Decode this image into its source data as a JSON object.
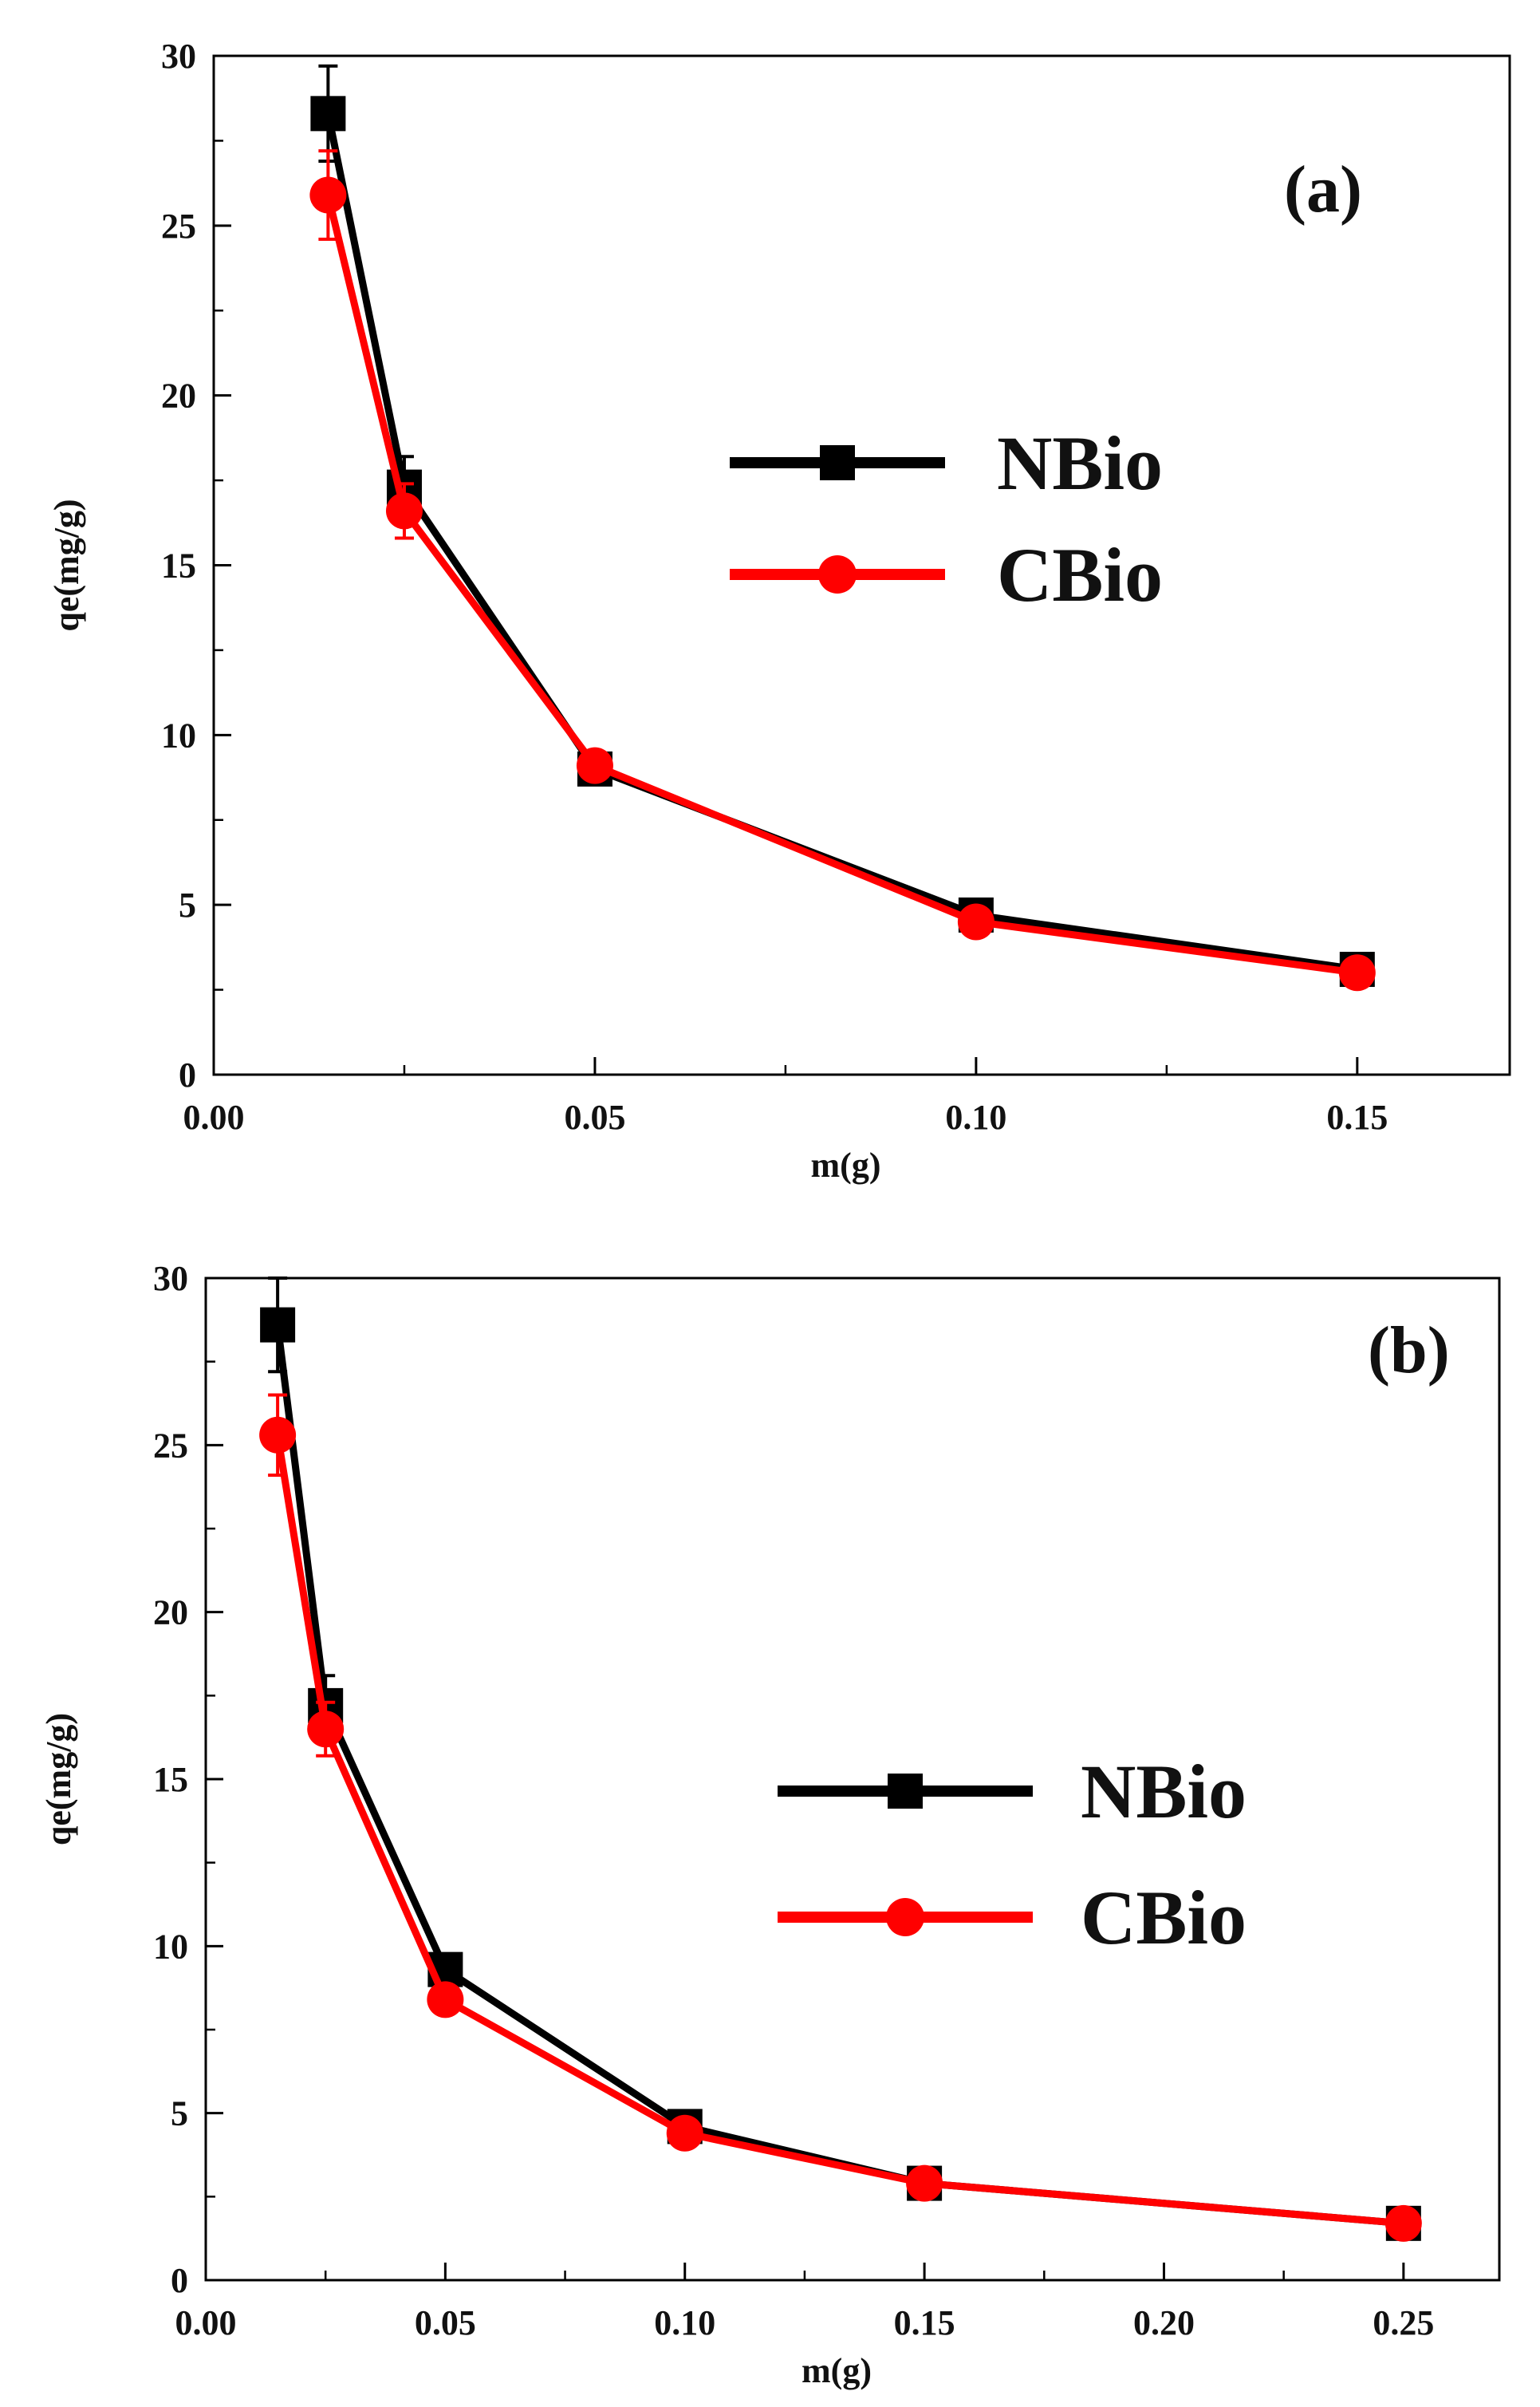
{
  "chart_data": [
    {
      "type": "line",
      "panel_label": "(a)",
      "xlabel": "m(g)",
      "ylabel": "qe(mg/g)",
      "xlim": [
        0,
        0.17
      ],
      "ylim": [
        0,
        30
      ],
      "xticks": [
        0.0,
        0.05,
        0.1,
        0.15
      ],
      "xtick_labels": [
        "0.00",
        "0.05",
        "0.10",
        "0.15"
      ],
      "yticks": [
        0,
        5,
        10,
        15,
        20,
        25,
        30
      ],
      "ytick_labels": [
        "0",
        "5",
        "10",
        "15",
        "20",
        "25",
        "30"
      ],
      "grid": false,
      "legend_position": "right-center",
      "series": [
        {
          "name": "NBio",
          "color": "#000000",
          "marker": "square",
          "x": [
            0.015,
            0.025,
            0.05,
            0.1,
            0.15
          ],
          "y": [
            28.3,
            17.3,
            9.0,
            4.7,
            3.1
          ],
          "err": [
            1.4,
            0.9,
            0.4,
            0.3,
            0.3
          ]
        },
        {
          "name": "CBio",
          "color": "#ff0000",
          "marker": "circle",
          "x": [
            0.015,
            0.025,
            0.05,
            0.1,
            0.15
          ],
          "y": [
            25.9,
            16.6,
            9.1,
            4.5,
            3.0
          ],
          "err": [
            1.3,
            0.8,
            0.4,
            0.3,
            0.3
          ]
        }
      ]
    },
    {
      "type": "line",
      "panel_label": "(b)",
      "xlabel": "m(g)",
      "ylabel": "qe(mg/g)",
      "xlim": [
        0,
        0.27
      ],
      "ylim": [
        0,
        30
      ],
      "xticks": [
        0.0,
        0.05,
        0.1,
        0.15,
        0.2,
        0.25
      ],
      "xtick_labels": [
        "0.00",
        "0.05",
        "0.10",
        "0.15",
        "0.20",
        "0.25"
      ],
      "yticks": [
        0,
        5,
        10,
        15,
        20,
        25,
        30
      ],
      "ytick_labels": [
        "0",
        "5",
        "10",
        "15",
        "20",
        "25",
        "30"
      ],
      "grid": false,
      "legend_position": "right-center",
      "series": [
        {
          "name": "NBio",
          "color": "#000000",
          "marker": "square",
          "x": [
            0.015,
            0.025,
            0.05,
            0.1,
            0.15,
            0.25
          ],
          "y": [
            28.6,
            17.2,
            9.3,
            4.6,
            2.9,
            1.7
          ],
          "err": [
            1.4,
            0.9,
            0.4,
            0.3,
            0.3,
            0.2
          ]
        },
        {
          "name": "CBio",
          "color": "#ff0000",
          "marker": "circle",
          "x": [
            0.015,
            0.025,
            0.05,
            0.1,
            0.15,
            0.25
          ],
          "y": [
            25.3,
            16.5,
            8.4,
            4.4,
            2.9,
            1.7
          ],
          "err": [
            1.2,
            0.8,
            0.4,
            0.3,
            0.2,
            0.2
          ]
        }
      ]
    }
  ]
}
